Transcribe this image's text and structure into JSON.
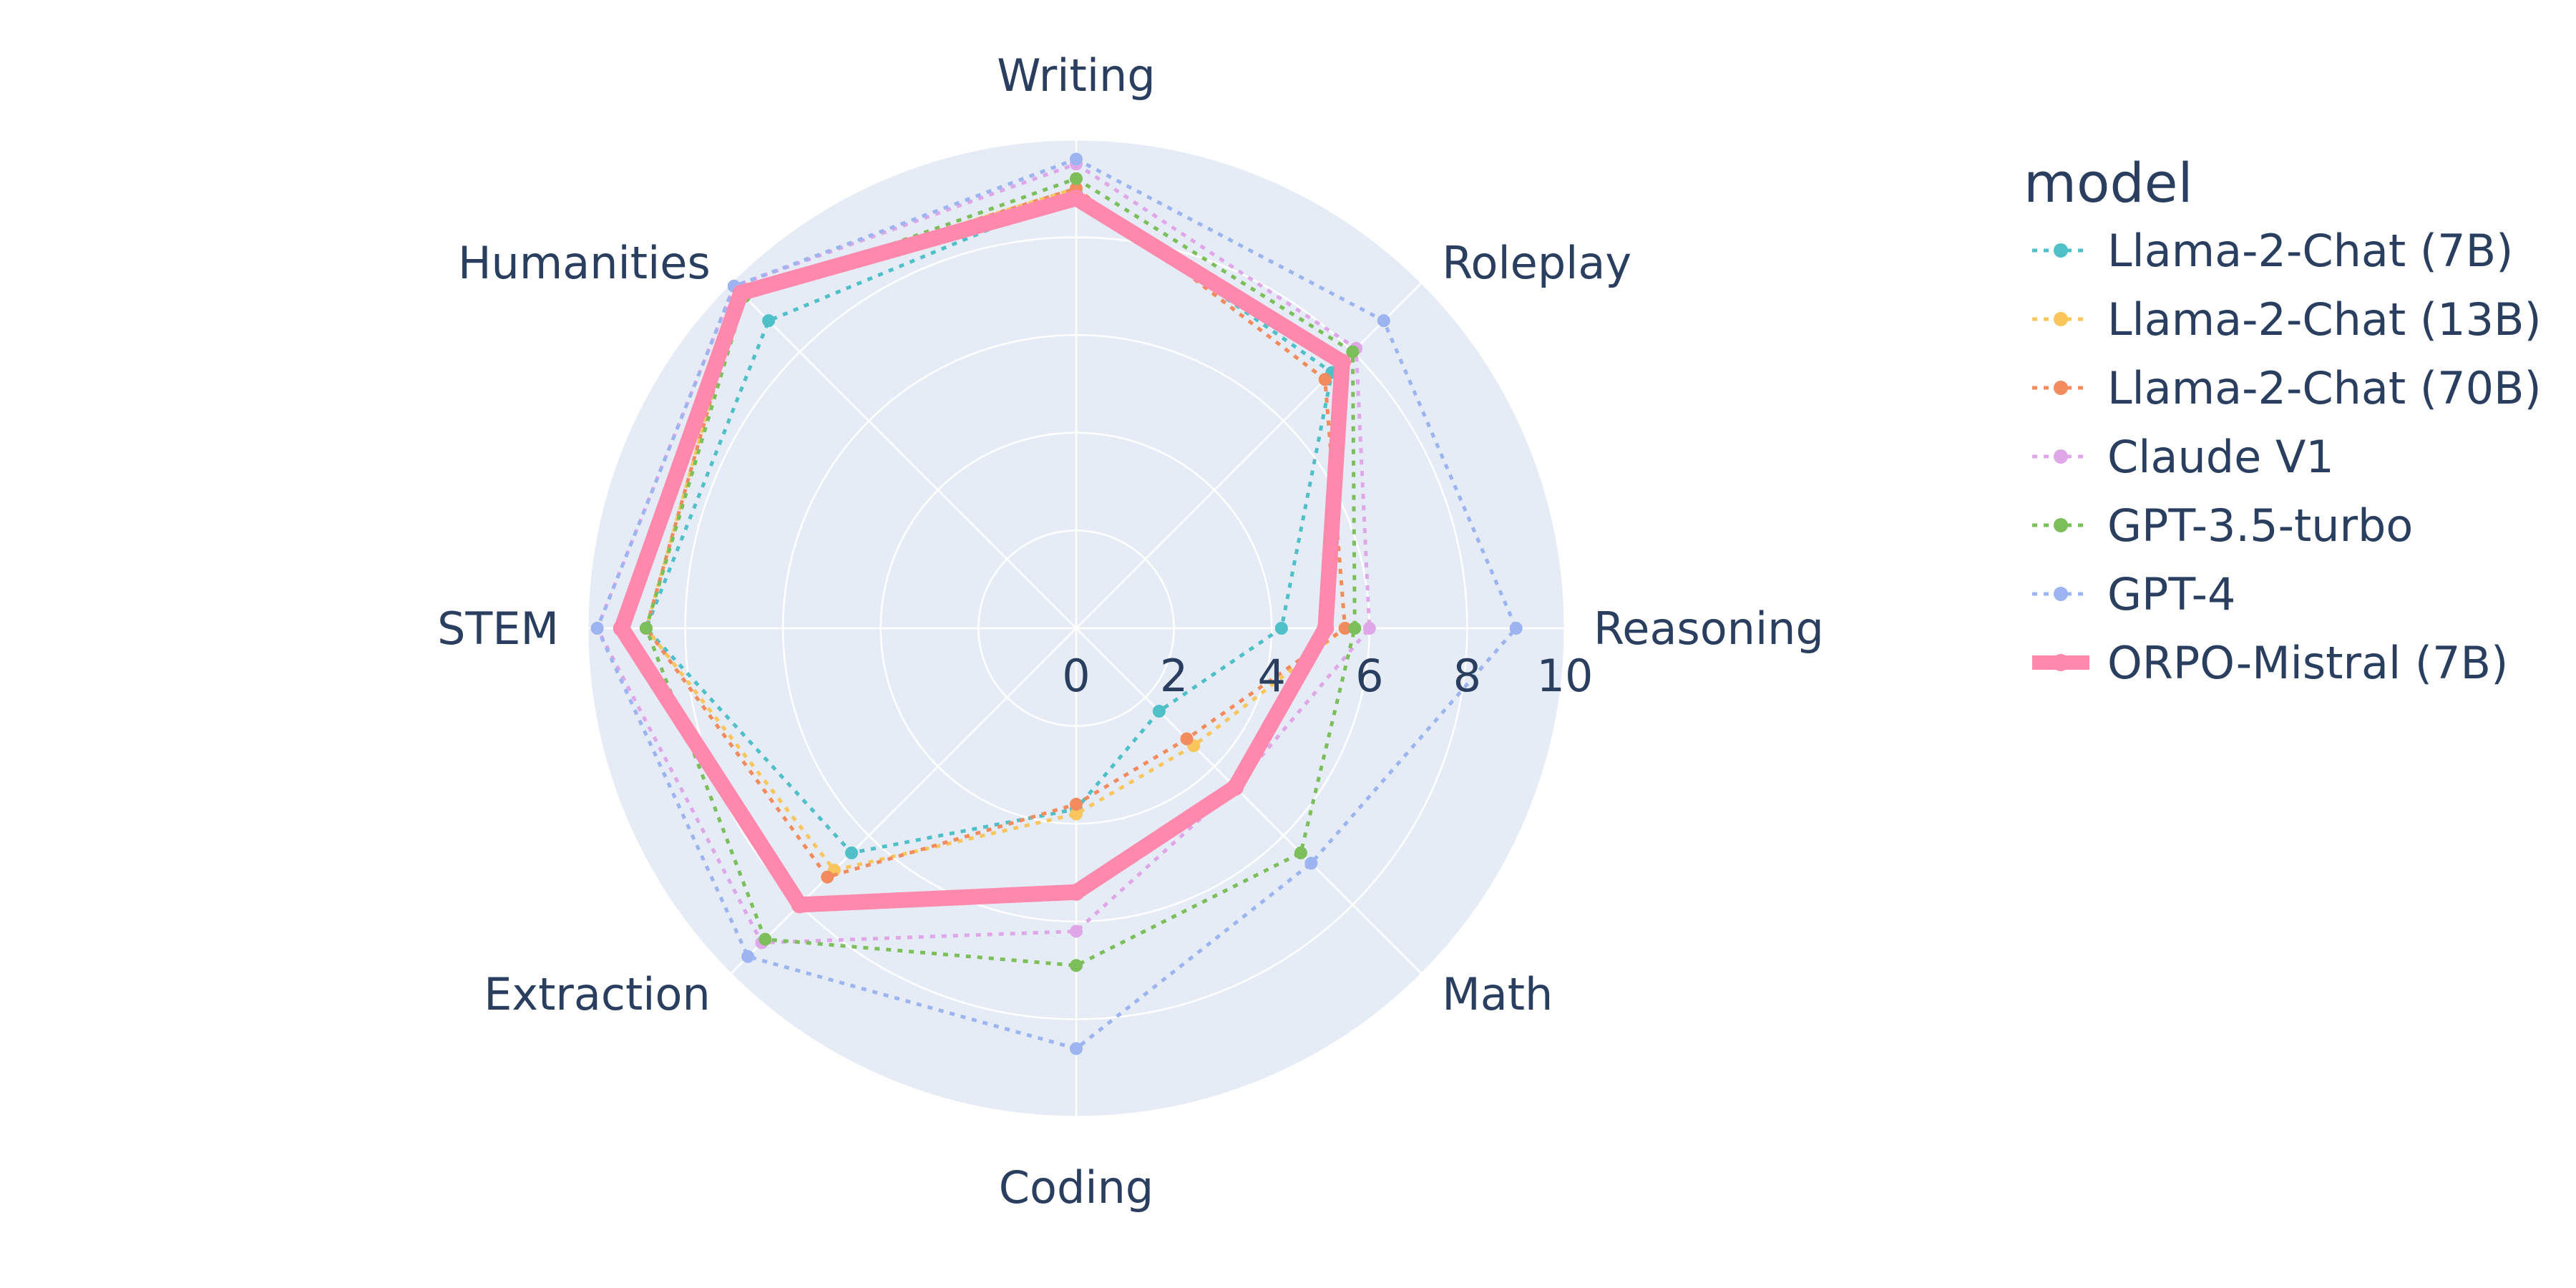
{
  "chart_data": {
    "type": "radar",
    "axes": [
      "Writing",
      "Roleplay",
      "Reasoning",
      "Math",
      "Coding",
      "Extraction",
      "STEM",
      "Humanities"
    ],
    "radial_range": [
      0,
      10
    ],
    "radial_ticks": [
      "0",
      "2",
      "4",
      "6",
      "8",
      "10"
    ],
    "grid": true,
    "legend": {
      "title": "model",
      "placement": "right"
    },
    "series": [
      {
        "name": "Llama-2-Chat (7B)",
        "color": "#4fc0c8",
        "style": "dotted",
        "values": [
          8.9,
          7.4,
          4.2,
          2.4,
          3.7,
          6.5,
          8.8,
          8.9
        ]
      },
      {
        "name": "Llama-2-Chat (13B)",
        "color": "#f8c65d",
        "style": "dotted",
        "values": [
          9.0,
          7.2,
          5.5,
          3.4,
          3.8,
          7.0,
          8.8,
          9.7
        ]
      },
      {
        "name": "Llama-2-Chat (70B)",
        "color": "#f28b5e",
        "style": "dotted",
        "values": [
          9.0,
          7.2,
          5.5,
          3.2,
          3.6,
          7.2,
          8.8,
          9.7
        ]
      },
      {
        "name": "Claude V1",
        "color": "#dfa6e8",
        "style": "dotted",
        "values": [
          9.5,
          8.1,
          6.0,
          4.6,
          6.2,
          9.1,
          9.8,
          9.9
        ]
      },
      {
        "name": "GPT-3.5-turbo",
        "color": "#7cbf5a",
        "style": "dotted",
        "values": [
          9.2,
          8.0,
          5.7,
          6.5,
          6.9,
          9.0,
          8.8,
          9.6
        ]
      },
      {
        "name": "GPT-4",
        "color": "#9cb4ef",
        "style": "dotted",
        "values": [
          9.6,
          8.9,
          9.0,
          6.8,
          8.6,
          9.5,
          9.8,
          9.9
        ]
      },
      {
        "name": "ORPO-Mistral (7B)",
        "color": "#ff88ad",
        "style": "solid",
        "values": [
          8.8,
          7.7,
          5.1,
          4.6,
          5.4,
          8.0,
          9.3,
          9.7
        ]
      }
    ]
  }
}
